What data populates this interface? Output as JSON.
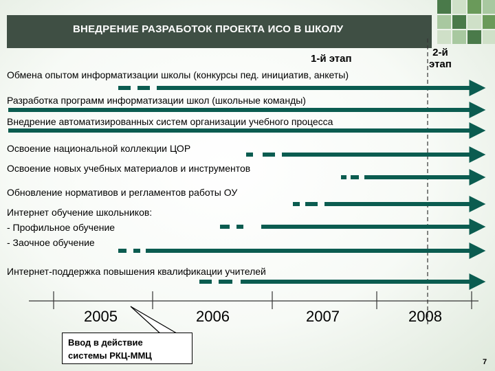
{
  "header": {
    "title": "ВНЕДРЕНИЕ РАЗРАБОТОК ПРОЕКТА ИСО В ШКОЛУ"
  },
  "stages": {
    "stage1": "1-й этап",
    "stage2_line1": "2-й",
    "stage2_line2": "этап"
  },
  "tasks": [
    "Обмена опытом информатизации школы (конкурсы пед. инициатив, анкеты)",
    "Разработка программ информатизации школ (школьные команды)",
    "Внедрение автоматизированных систем организации учебного процесса",
    "Освоение национальной коллекции ЦОР",
    "Освоение новых учебных материалов и инструментов",
    "Обновление нормативов и регламентов работы ОУ",
    "Интернет обучение школьников:",
    "- Профильное обучение",
    "- Заочное обучение",
    "Интернет-поддержка повышения квалификации учителей"
  ],
  "timeline": {
    "years": [
      "2005",
      "2006",
      "2007",
      "2008"
    ]
  },
  "callout": {
    "line1": "Ввод в действие",
    "line2": "системы РКЦ-ММЦ"
  },
  "page_number": "7",
  "colors": {
    "header_bg": "#3f4f44",
    "arrow": "#0b5c50",
    "accent_green": "#5a9a4a"
  }
}
